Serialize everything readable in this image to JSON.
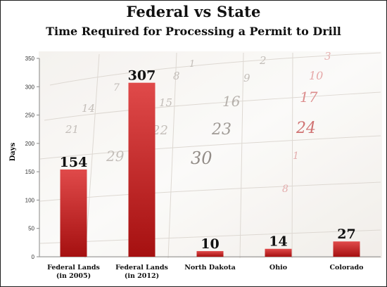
{
  "header": {
    "title": "Federal vs State",
    "subtitle": "Time Required for Processing a Permit to Drill"
  },
  "colors": {
    "bar_top": "#e04a4a",
    "bar_bottom": "#a51010",
    "axis": "#8a8a8a",
    "background": "#ffffff"
  },
  "background_image": "calendar-page",
  "chart_data": {
    "type": "bar",
    "title": "Federal vs State",
    "subtitle": "Time Required for Processing a Permit to Drill",
    "xlabel": "",
    "ylabel": "Days",
    "categories": [
      [
        "Federal Lands",
        "(in 2005)"
      ],
      [
        "Federal Lands",
        "(in 2012)"
      ],
      [
        "North Dakota"
      ],
      [
        "Ohio"
      ],
      [
        "Colorado"
      ]
    ],
    "values": [
      154,
      307,
      10,
      14,
      27
    ],
    "data_labels": [
      "154",
      "307",
      "10",
      "14",
      "27"
    ],
    "ylim": [
      0,
      350
    ],
    "yticks": [
      "0",
      "50",
      "100",
      "150",
      "200",
      "250",
      "300",
      "350"
    ],
    "grid": false,
    "legend": "none"
  }
}
